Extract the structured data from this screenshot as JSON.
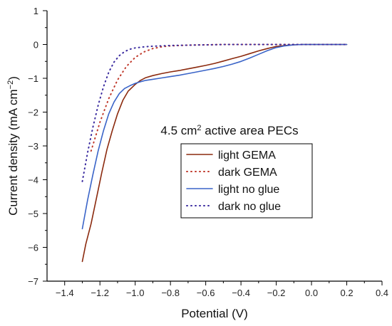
{
  "chart_data": {
    "type": "line",
    "xlabel": "Potential (V)",
    "ylabel_main": "Current density (mA cm",
    "ylabel_sup": "−2",
    "ylabel_tail": ")",
    "xlim": [
      -1.5,
      0.4
    ],
    "ylim": [
      -7,
      1
    ],
    "x_ticks": [
      -1.4,
      -1.2,
      -1.0,
      -0.8,
      -0.6,
      -0.4,
      -0.2,
      0.0,
      0.2,
      0.4
    ],
    "x_tick_labels": [
      "−1.4",
      "−1.2",
      "−1.0",
      "−0.8",
      "−0.6",
      "−0.4",
      "−0.2",
      "0.0",
      "0.2",
      "0.4"
    ],
    "y_ticks": [
      1,
      0,
      -1,
      -2,
      -3,
      -4,
      -5,
      -6,
      -7
    ],
    "y_tick_labels": [
      "1",
      "0",
      "−1",
      "−2",
      "−3",
      "−4",
      "−5",
      "−6",
      "−7"
    ],
    "annotation": {
      "prefix": "4.5 cm",
      "sup": "2",
      "suffix": " active area PECs"
    },
    "legend_placement": "center-right",
    "grid": false,
    "series": [
      {
        "name": "light GEMA",
        "color": "#8b2a0e",
        "style": "solid",
        "x": [
          -1.3,
          -1.28,
          -1.25,
          -1.22,
          -1.19,
          -1.16,
          -1.13,
          -1.1,
          -1.07,
          -1.04,
          -1.0,
          -0.97,
          -0.94,
          -0.9,
          -0.85,
          -0.8,
          -0.75,
          -0.7,
          -0.65,
          -0.6,
          -0.55,
          -0.5,
          -0.45,
          -0.4,
          -0.35,
          -0.3,
          -0.25,
          -0.2,
          -0.15,
          -0.1,
          -0.05,
          0.0,
          0.05,
          0.1,
          0.15,
          0.2
        ],
        "y": [
          -6.42,
          -5.9,
          -5.3,
          -4.55,
          -3.8,
          -3.1,
          -2.55,
          -2.05,
          -1.65,
          -1.38,
          -1.18,
          -1.06,
          -0.98,
          -0.92,
          -0.86,
          -0.81,
          -0.77,
          -0.72,
          -0.67,
          -0.62,
          -0.56,
          -0.49,
          -0.42,
          -0.35,
          -0.27,
          -0.19,
          -0.12,
          -0.06,
          -0.03,
          -0.01,
          0.0,
          0.0,
          0.0,
          0.0,
          0.0,
          0.0
        ]
      },
      {
        "name": "dark GEMA",
        "color": "#c0392b",
        "style": "dotted",
        "x": [
          -1.25,
          -1.2,
          -1.15,
          -1.1,
          -1.05,
          -1.0,
          -0.95,
          -0.9,
          -0.85,
          -0.8,
          -0.7,
          -0.6,
          -0.5,
          -0.4,
          -0.3,
          -0.2,
          -0.1,
          0.0,
          0.1,
          0.2
        ],
        "y": [
          -3.15,
          -2.3,
          -1.6,
          -1.05,
          -0.65,
          -0.38,
          -0.22,
          -0.12,
          -0.07,
          -0.04,
          -0.02,
          -0.01,
          0.0,
          0.0,
          0.0,
          0.0,
          0.0,
          0.0,
          0.0,
          0.0
        ]
      },
      {
        "name": "light no glue",
        "color": "#3a64c8",
        "style": "solid",
        "x": [
          -1.3,
          -1.27,
          -1.24,
          -1.21,
          -1.18,
          -1.15,
          -1.12,
          -1.09,
          -1.06,
          -1.03,
          -1.0,
          -0.97,
          -0.94,
          -0.9,
          -0.85,
          -0.8,
          -0.75,
          -0.7,
          -0.65,
          -0.6,
          -0.55,
          -0.5,
          -0.45,
          -0.4,
          -0.35,
          -0.3,
          -0.25,
          -0.2,
          -0.15,
          -0.1,
          -0.05,
          0.0,
          0.05,
          0.1,
          0.15,
          0.2
        ],
        "y": [
          -5.45,
          -4.6,
          -3.85,
          -3.15,
          -2.55,
          -2.05,
          -1.7,
          -1.45,
          -1.3,
          -1.22,
          -1.15,
          -1.1,
          -1.06,
          -1.03,
          -0.99,
          -0.95,
          -0.91,
          -0.86,
          -0.81,
          -0.76,
          -0.71,
          -0.65,
          -0.58,
          -0.5,
          -0.4,
          -0.29,
          -0.18,
          -0.09,
          -0.04,
          -0.01,
          0.0,
          0.0,
          0.0,
          0.0,
          0.0,
          0.0
        ]
      },
      {
        "name": "dark no glue",
        "color": "#3b2ca0",
        "style": "dotted",
        "x": [
          -1.3,
          -1.27,
          -1.24,
          -1.21,
          -1.18,
          -1.15,
          -1.12,
          -1.09,
          -1.06,
          -1.03,
          -1.0,
          -0.95,
          -0.9,
          -0.85,
          -0.8,
          -0.7,
          -0.6,
          -0.5,
          -0.4,
          -0.3,
          -0.2,
          -0.1,
          0.0,
          0.1,
          0.2
        ],
        "y": [
          -4.05,
          -3.2,
          -2.45,
          -1.8,
          -1.25,
          -0.82,
          -0.52,
          -0.33,
          -0.21,
          -0.14,
          -0.1,
          -0.07,
          -0.05,
          -0.04,
          -0.03,
          -0.02,
          -0.01,
          0.0,
          0.0,
          0.0,
          0.0,
          0.0,
          0.0,
          0.0,
          0.0
        ]
      }
    ]
  }
}
